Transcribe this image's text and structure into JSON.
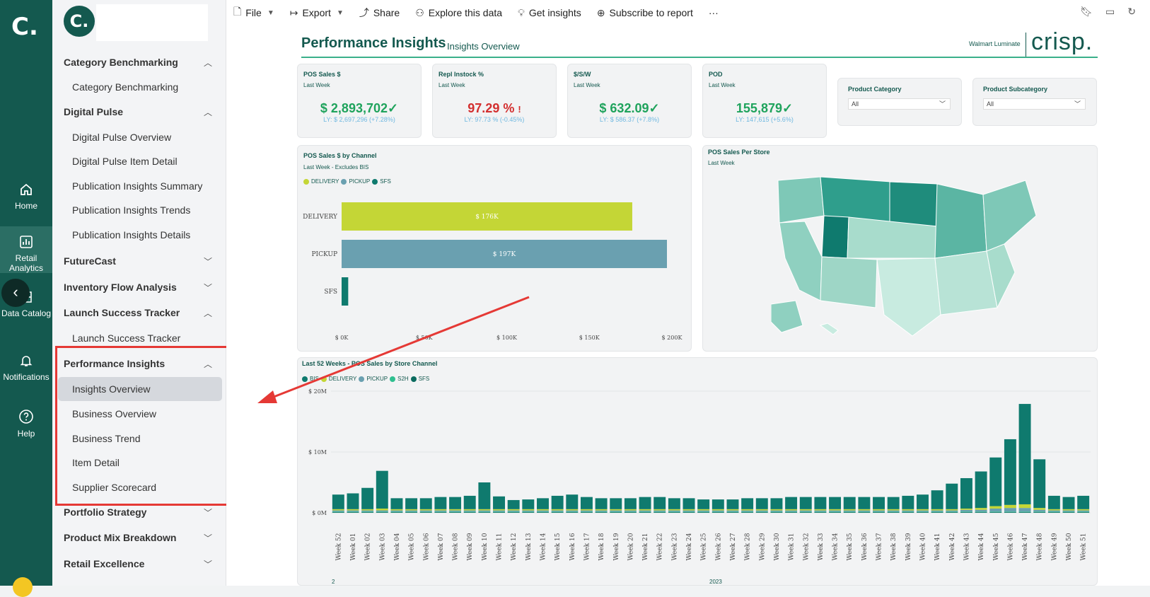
{
  "rail": {
    "logo": "C.",
    "items": [
      {
        "label": "Home",
        "icon": "home-icon"
      },
      {
        "label": "Retail Analytics",
        "icon": "bar-chart-icon"
      },
      {
        "label": "Data Catalog",
        "icon": "grid-icon"
      },
      {
        "label": "Notifications",
        "icon": "bell-icon"
      },
      {
        "label": "Help",
        "icon": "help-icon"
      }
    ]
  },
  "sidebar": {
    "logo": "C.",
    "sections": [
      {
        "label": "Category Benchmarking",
        "expanded": true,
        "items": [
          "Category Benchmarking"
        ]
      },
      {
        "label": "Digital Pulse",
        "expanded": true,
        "items": [
          "Digital Pulse Overview",
          "Digital Pulse Item Detail",
          "Publication Insights Summary",
          "Publication Insights Trends",
          "Publication Insights Details"
        ]
      },
      {
        "label": "FutureCast",
        "expanded": false,
        "items": []
      },
      {
        "label": "Inventory Flow Analysis",
        "expanded": false,
        "items": []
      },
      {
        "label": "Launch Success Tracker",
        "expanded": true,
        "items": [
          "Launch Success Tracker"
        ]
      },
      {
        "label": "Performance Insights",
        "expanded": true,
        "items": [
          "Insights Overview",
          "Business Overview",
          "Business Trend",
          "Item Detail",
          "Supplier Scorecard"
        ]
      },
      {
        "label": "Portfolio Strategy",
        "expanded": false,
        "items": []
      },
      {
        "label": "Product Mix Breakdown",
        "expanded": false,
        "items": []
      },
      {
        "label": "Retail Excellence",
        "expanded": false,
        "items": []
      }
    ],
    "active_item": "Insights Overview"
  },
  "toolbar": {
    "file": "File",
    "export": "Export",
    "share": "Share",
    "explore": "Explore this data",
    "insights": "Get insights",
    "subscribe": "Subscribe to report",
    "more": "···"
  },
  "report": {
    "title": "Performance Insights",
    "subtitle": "Insights Overview",
    "brand_small": "Walmart Luminate",
    "brand_big": "crisp."
  },
  "kpis": [
    {
      "title": "POS Sales $",
      "period": "Last Week",
      "value": "$ 2,893,702",
      "mark": "✓",
      "status": "good",
      "ly": "LY: $ 2,697,296 (+7.28%)"
    },
    {
      "title": "Repl Instock %",
      "period": "Last Week",
      "value": "97.29 %",
      "mark": "!",
      "status": "bad",
      "ly": "LY: 97.73 % (-0.45%)"
    },
    {
      "title": "$/S/W",
      "period": "Last Week",
      "value": "$ 632.09",
      "mark": "✓",
      "status": "good",
      "ly": "LY: $ 586.37 (+7.8%)"
    },
    {
      "title": "POD",
      "period": "Last Week",
      "value": "155,879",
      "mark": "✓",
      "status": "good",
      "ly": "LY: 147,615 (+5.6%)"
    }
  ],
  "filters": [
    {
      "label": "Product Category",
      "value": "All"
    },
    {
      "label": "Product Subcategory",
      "value": "All"
    }
  ],
  "channel_chart": {
    "title": "POS Sales $ by Channel",
    "subtitle": "Last Week - Excludes BIS",
    "legend": [
      {
        "name": "DELIVERY",
        "color": "#c4d636"
      },
      {
        "name": "PICKUP",
        "color": "#6aa0b0"
      },
      {
        "name": "SFS",
        "color": "#0f7a6e"
      }
    ]
  },
  "map": {
    "title": "POS Sales Per Store",
    "subtitle": "Last Week"
  },
  "weekly_chart": {
    "title": "Last 52 Weeks - POS Sales by Store Channel",
    "legend": [
      {
        "name": "BIS",
        "color": "#0f7a6e"
      },
      {
        "name": "DELIVERY",
        "color": "#c4d636"
      },
      {
        "name": "PICKUP",
        "color": "#6aa0b0"
      },
      {
        "name": "S2H",
        "color": "#2fbf8f"
      },
      {
        "name": "SFS",
        "color": "#0b6b5f"
      }
    ],
    "year_labels": [
      "2",
      "2023"
    ]
  },
  "chart_data": [
    {
      "type": "bar",
      "orientation": "horizontal",
      "title": "POS Sales $ by Channel",
      "categories": [
        "DELIVERY",
        "PICKUP",
        "SFS"
      ],
      "values": [
        176,
        197,
        4
      ],
      "value_labels": [
        "$ 176K",
        "$ 197K",
        ""
      ],
      "colors": [
        "#c4d636",
        "#6aa0b0",
        "#0f7a6e"
      ],
      "xlim": [
        0,
        200
      ],
      "x_ticks": [
        "$ 0K",
        "$ 50K",
        "$ 100K",
        "$ 150K",
        "$ 200K"
      ],
      "x_tick_values": [
        0,
        50,
        100,
        150,
        200
      ]
    },
    {
      "type": "bar",
      "stacked": true,
      "title": "Last 52 Weeks - POS Sales by Store Channel",
      "categories": [
        "Week 52",
        "Week 01",
        "Week 02",
        "Week 03",
        "Week 04",
        "Week 05",
        "Week 06",
        "Week 07",
        "Week 08",
        "Week 09",
        "Week 10",
        "Week 11",
        "Week 12",
        "Week 13",
        "Week 14",
        "Week 15",
        "Week 16",
        "Week 17",
        "Week 18",
        "Week 19",
        "Week 20",
        "Week 21",
        "Week 22",
        "Week 23",
        "Week 24",
        "Week 25",
        "Week 26",
        "Week 27",
        "Week 28",
        "Week 29",
        "Week 30",
        "Week 31",
        "Week 32",
        "Week 33",
        "Week 34",
        "Week 35",
        "Week 36",
        "Week 37",
        "Week 38",
        "Week 39",
        "Week 40",
        "Week 41",
        "Week 42",
        "Week 43",
        "Week 44",
        "Week 45",
        "Week 46",
        "Week 47",
        "Week 48",
        "Week 49",
        "Week 50",
        "Week 51"
      ],
      "series": [
        {
          "name": "BIS",
          "values": [
            2.4,
            2.6,
            3.5,
            6.2,
            1.8,
            1.8,
            1.8,
            2.0,
            2.0,
            2.2,
            4.4,
            2.1,
            1.5,
            1.6,
            1.8,
            2.2,
            2.4,
            2.0,
            1.8,
            1.8,
            1.8,
            2.0,
            2.0,
            1.8,
            1.8,
            1.6,
            1.6,
            1.6,
            1.8,
            1.8,
            1.8,
            2.0,
            2.0,
            2.0,
            2.0,
            2.0,
            2.0,
            2.0,
            2.0,
            2.2,
            2.4,
            3.1,
            4.2,
            5.0,
            6.0,
            8.0,
            10.8,
            16.5,
            8.0,
            2.2,
            2.0,
            2.2
          ]
        },
        {
          "name": "DELIVERY",
          "values": [
            0.2,
            0.2,
            0.2,
            0.3,
            0.2,
            0.2,
            0.2,
            0.2,
            0.2,
            0.2,
            0.2,
            0.2,
            0.2,
            0.2,
            0.2,
            0.2,
            0.2,
            0.2,
            0.2,
            0.2,
            0.2,
            0.2,
            0.2,
            0.2,
            0.2,
            0.2,
            0.2,
            0.2,
            0.2,
            0.2,
            0.2,
            0.2,
            0.2,
            0.2,
            0.2,
            0.2,
            0.2,
            0.2,
            0.2,
            0.2,
            0.2,
            0.2,
            0.2,
            0.2,
            0.3,
            0.4,
            0.5,
            0.6,
            0.3,
            0.2,
            0.2,
            0.2
          ]
        },
        {
          "name": "PICKUP",
          "values": [
            0.2,
            0.2,
            0.2,
            0.2,
            0.2,
            0.2,
            0.2,
            0.2,
            0.2,
            0.2,
            0.2,
            0.2,
            0.2,
            0.2,
            0.2,
            0.2,
            0.2,
            0.2,
            0.2,
            0.2,
            0.2,
            0.2,
            0.2,
            0.2,
            0.2,
            0.2,
            0.2,
            0.2,
            0.2,
            0.2,
            0.2,
            0.2,
            0.2,
            0.2,
            0.2,
            0.2,
            0.2,
            0.2,
            0.2,
            0.2,
            0.2,
            0.2,
            0.2,
            0.3,
            0.3,
            0.5,
            0.6,
            0.6,
            0.3,
            0.2,
            0.2,
            0.2
          ]
        },
        {
          "name": "S2H",
          "values": [
            0.1,
            0.1,
            0.1,
            0.1,
            0.1,
            0.1,
            0.1,
            0.1,
            0.1,
            0.1,
            0.1,
            0.1,
            0.1,
            0.1,
            0.1,
            0.1,
            0.1,
            0.1,
            0.1,
            0.1,
            0.1,
            0.1,
            0.1,
            0.1,
            0.1,
            0.1,
            0.1,
            0.1,
            0.1,
            0.1,
            0.1,
            0.1,
            0.1,
            0.1,
            0.1,
            0.1,
            0.1,
            0.1,
            0.1,
            0.1,
            0.1,
            0.1,
            0.1,
            0.1,
            0.1,
            0.1,
            0.1,
            0.1,
            0.1,
            0.1,
            0.1,
            0.1
          ]
        },
        {
          "name": "SFS",
          "values": [
            0.1,
            0.1,
            0.1,
            0.1,
            0.1,
            0.1,
            0.1,
            0.1,
            0.1,
            0.1,
            0.1,
            0.1,
            0.1,
            0.1,
            0.1,
            0.1,
            0.1,
            0.1,
            0.1,
            0.1,
            0.1,
            0.1,
            0.1,
            0.1,
            0.1,
            0.1,
            0.1,
            0.1,
            0.1,
            0.1,
            0.1,
            0.1,
            0.1,
            0.1,
            0.1,
            0.1,
            0.1,
            0.1,
            0.1,
            0.1,
            0.1,
            0.1,
            0.1,
            0.1,
            0.1,
            0.1,
            0.1,
            0.1,
            0.1,
            0.1,
            0.1,
            0.1
          ]
        }
      ],
      "ylim": [
        0,
        20
      ],
      "y_ticks": [
        "$ 0M",
        "$ 10M",
        "$ 20M"
      ],
      "y_tick_values": [
        0,
        10,
        20
      ],
      "ylabel": "",
      "xlabel": ""
    }
  ]
}
